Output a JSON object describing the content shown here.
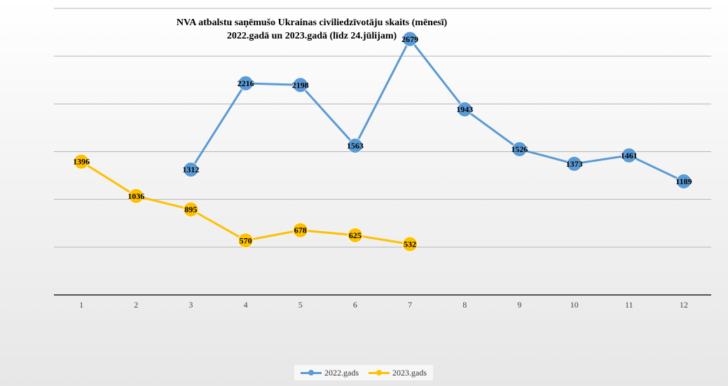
{
  "chart_data": {
    "type": "line",
    "title_line1": "NVA atbalstu saņēmušo Ukrainas civiliedzīvotāju skaits (mēnesī)",
    "title_line2": "2022.gadā un 2023.gadā (līdz 24.jūlijam)",
    "categories": [
      "1",
      "2",
      "3",
      "4",
      "5",
      "6",
      "7",
      "8",
      "9",
      "10",
      "11",
      "12"
    ],
    "series": [
      {
        "name": "2022.gads",
        "color": "#5B9BD5",
        "values": [
          null,
          null,
          1312,
          2216,
          2198,
          1563,
          2679,
          1943,
          1526,
          1373,
          1461,
          1189
        ]
      },
      {
        "name": "2023.gads",
        "color": "#FFC000",
        "values": [
          1396,
          1036,
          895,
          570,
          678,
          625,
          532,
          null,
          null,
          null,
          null,
          null
        ]
      }
    ],
    "ylim": [
      0,
      3000
    ],
    "y_gridlines": [
      500,
      1000,
      1500,
      2000,
      2500,
      3000
    ],
    "y_tick_labels_shown": false,
    "grid": true,
    "legend_position": "bottom"
  }
}
